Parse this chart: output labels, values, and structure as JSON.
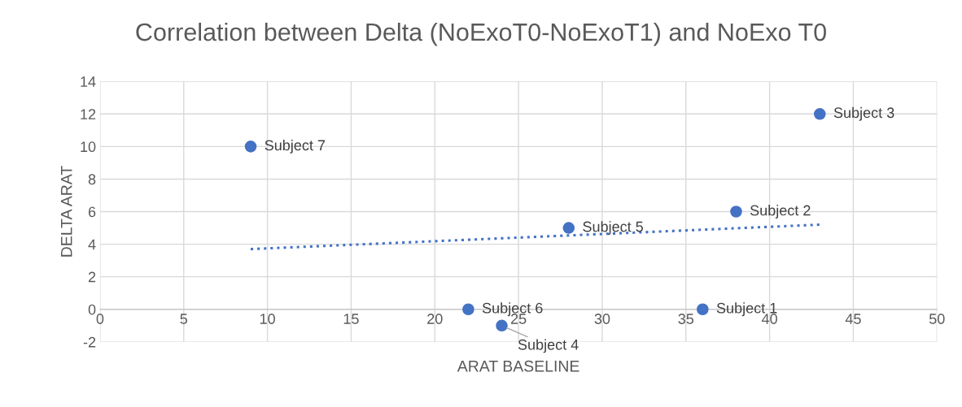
{
  "chart_data": {
    "type": "scatter",
    "title": "Correlation between Delta (NoExoT0-NoExoT1) and NoExo T0",
    "xlabel": "ARAT BASELINE",
    "ylabel": "DELTA ARAT",
    "series": [
      {
        "color": "#4472c4",
        "x": [
          36,
          38,
          43,
          24,
          28,
          22,
          9
        ],
        "values": [
          0,
          6,
          12,
          -1,
          5,
          0,
          10
        ],
        "marker": "circle"
      },
      {
        "type": "line",
        "color": "#4472c4",
        "x": [
          9,
          43
        ],
        "values": [
          3.7,
          5.2
        ],
        "line_style": "dotted",
        "marker": "none"
      }
    ],
    "annotations": [
      {
        "text": "Subject 1",
        "x": 36,
        "y": 0
      },
      {
        "text": "Subject 2",
        "x": 38,
        "y": 6
      },
      {
        "text": "Subject 3",
        "x": 43,
        "y": 12
      },
      {
        "text": "Subject 4",
        "x": 24,
        "y": -1
      },
      {
        "text": "Subject 5",
        "x": 28,
        "y": 5
      },
      {
        "text": "Subject 6",
        "x": 22,
        "y": 0
      },
      {
        "text": "Subject 7",
        "x": 9,
        "y": 10
      }
    ],
    "xlim": [
      0,
      50
    ],
    "xticks": [
      0,
      5,
      10,
      15,
      20,
      25,
      30,
      35,
      40,
      45,
      50
    ],
    "ylim": [
      -2,
      14
    ],
    "yticks": [
      -2,
      0,
      2,
      4,
      6,
      8,
      10,
      12,
      14
    ],
    "grid": true,
    "legend": false
  }
}
